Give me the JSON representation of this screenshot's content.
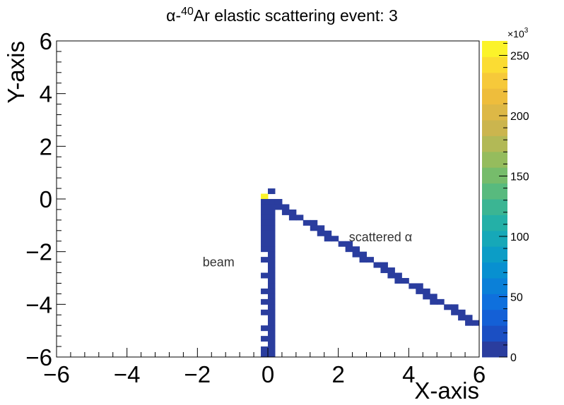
{
  "chart_data": {
    "type": "heatmap",
    "title": {
      "prefix": "α-",
      "superscript": "40",
      "rest": "Ar elastic scattering event: 3"
    },
    "xlabel": "X-axis",
    "ylabel": "Y-axis",
    "xlim": [
      -6,
      6
    ],
    "ylim": [
      -6,
      6
    ],
    "x_ticks": [
      "−6",
      "−4",
      "−2",
      "0",
      "2",
      "4",
      "6"
    ],
    "y_ticks": [
      "6",
      "4",
      "2",
      "0",
      "−2",
      "−4",
      "−6"
    ],
    "bin_size": 0.2,
    "colorbar": {
      "min": 0,
      "max": 262,
      "multiplier": "×10",
      "multiplier_exponent": "3",
      "ticks": [
        "0",
        "50",
        "100",
        "150",
        "200",
        "250"
      ],
      "palette": [
        "#2a3d9e",
        "#1b4fc3",
        "#1460d6",
        "#0f70dd",
        "#0b80d8",
        "#0890d0",
        "#0c9dc6",
        "#16a8b8",
        "#24b0a7",
        "#3bb593",
        "#58ba7e",
        "#76bc6b",
        "#95bc5d",
        "#b2b956",
        "#cbb54e",
        "#ddb846",
        "#eebd3c",
        "#f6c93a",
        "#fbdc33",
        "#fbf32a"
      ]
    },
    "annotations": [
      {
        "text": "beam",
        "x": -1.4,
        "y": -2.4
      },
      {
        "text": "scattered α",
        "x": 3.2,
        "y": -1.45
      }
    ],
    "beam_track": {
      "columns": [
        -0.2,
        0.0
      ],
      "y_top": -0.6,
      "y_bottom": -6.0,
      "gap_bins": [
        [
          -0.2,
          -2.2
        ],
        [
          -0.2,
          -2.6
        ],
        [
          -0.2,
          -2.8
        ],
        [
          -0.2,
          -3.2
        ],
        [
          -0.2,
          -3.4
        ],
        [
          -0.2,
          -3.8
        ],
        [
          -0.2,
          -4.2
        ],
        [
          -0.2,
          -4.6
        ],
        [
          -0.2,
          -4.8
        ],
        [
          -0.2,
          -5.2
        ],
        [
          -0.2,
          -5.6
        ]
      ]
    },
    "scattered_track": {
      "start": [
        0.0,
        0.0
      ],
      "end": [
        6.0,
        -4.8
      ],
      "thickness_bins": 1
    },
    "extra_bins": [
      {
        "x": -0.2,
        "y": 0.0,
        "value": 262
      },
      {
        "x": -0.2,
        "y": -0.2,
        "value": 2
      },
      {
        "x": -0.2,
        "y": -0.4,
        "value": 2
      },
      {
        "x": 0.0,
        "y": 0.2,
        "value": 2
      },
      {
        "x": 0.0,
        "y": -0.2,
        "value": 2
      },
      {
        "x": 0.0,
        "y": -0.4,
        "value": 2
      }
    ],
    "track_value": 2
  }
}
